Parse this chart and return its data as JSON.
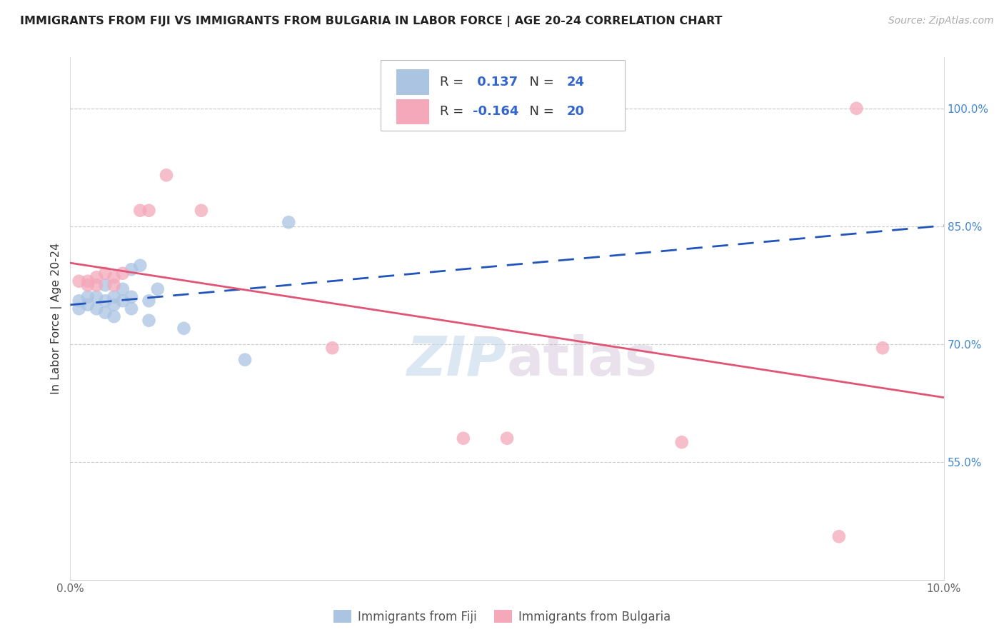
{
  "title": "IMMIGRANTS FROM FIJI VS IMMIGRANTS FROM BULGARIA IN LABOR FORCE | AGE 20-24 CORRELATION CHART",
  "source": "Source: ZipAtlas.com",
  "ylabel": "In Labor Force | Age 20-24",
  "watermark": "ZIPatlas",
  "fiji_R": 0.137,
  "fiji_N": 24,
  "bulgaria_R": -0.164,
  "bulgaria_N": 20,
  "fiji_color": "#aac4e2",
  "bulgaria_color": "#f4a8ba",
  "fiji_line_color": "#2255bb",
  "bulgaria_line_color": "#e05575",
  "xlim": [
    0.0,
    0.1
  ],
  "ylim": [
    0.4,
    1.065
  ],
  "xticks": [
    0.0,
    0.02,
    0.04,
    0.06,
    0.08,
    0.1
  ],
  "xticklabels": [
    "0.0%",
    "",
    "",
    "",
    "",
    "10.0%"
  ],
  "yticks_right": [
    0.55,
    0.7,
    0.85,
    1.0
  ],
  "ytick_labels_right": [
    "55.0%",
    "70.0%",
    "85.0%",
    "100.0%"
  ],
  "fiji_x": [
    0.001,
    0.001,
    0.002,
    0.002,
    0.003,
    0.003,
    0.004,
    0.004,
    0.004,
    0.005,
    0.005,
    0.005,
    0.006,
    0.006,
    0.007,
    0.007,
    0.007,
    0.008,
    0.009,
    0.009,
    0.01,
    0.013,
    0.02,
    0.025
  ],
  "fiji_y": [
    0.755,
    0.745,
    0.76,
    0.75,
    0.76,
    0.745,
    0.775,
    0.755,
    0.74,
    0.76,
    0.75,
    0.735,
    0.77,
    0.755,
    0.795,
    0.76,
    0.745,
    0.8,
    0.755,
    0.73,
    0.77,
    0.72,
    0.68,
    0.855
  ],
  "bulgaria_x": [
    0.001,
    0.002,
    0.002,
    0.003,
    0.003,
    0.004,
    0.005,
    0.005,
    0.006,
    0.008,
    0.009,
    0.011,
    0.015,
    0.03,
    0.045,
    0.05,
    0.07,
    0.088,
    0.09,
    0.093
  ],
  "bulgaria_y": [
    0.78,
    0.78,
    0.775,
    0.785,
    0.775,
    0.79,
    0.785,
    0.775,
    0.79,
    0.87,
    0.87,
    0.915,
    0.87,
    0.695,
    0.58,
    0.58,
    0.575,
    0.455,
    1.0,
    0.695
  ]
}
